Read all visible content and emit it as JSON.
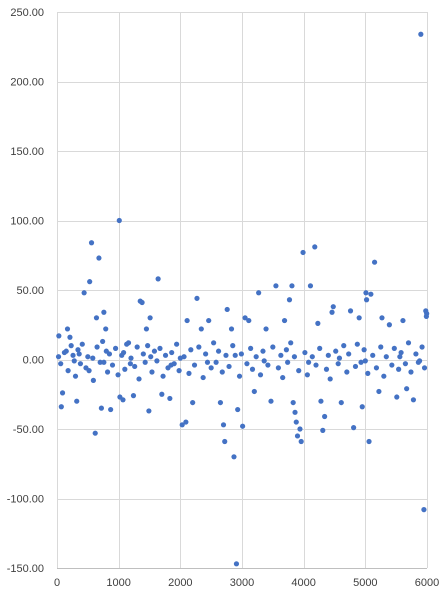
{
  "chart_data": {
    "type": "scatter",
    "title": "",
    "xlabel": "",
    "ylabel": "",
    "xlim": [
      0,
      6000
    ],
    "ylim": [
      -150,
      250
    ],
    "x_ticks": [
      0,
      1000,
      2000,
      3000,
      4000,
      5000,
      6000
    ],
    "x_tick_labels": [
      "0",
      "1000",
      "2000",
      "3000",
      "4000",
      "5000",
      "6000"
    ],
    "y_ticks": [
      250,
      200,
      150,
      100,
      50,
      0,
      -50,
      -100,
      -150
    ],
    "y_tick_labels": [
      "250.00",
      "200.00",
      "150.00",
      "100.00",
      "50.00",
      "0.00",
      "-50.00",
      "-100.00",
      "-150.00"
    ],
    "grid": "on",
    "legend": "none",
    "colors": {
      "marker": "#4472c4",
      "positive_label": "#404040",
      "negative_label": "#c00000",
      "grid": "#d9d9d9"
    },
    "series": [
      {
        "points": [
          [
            30,
            17
          ],
          [
            70,
            -34
          ],
          [
            90,
            -24
          ],
          [
            170,
            22
          ],
          [
            210,
            16
          ],
          [
            230,
            10
          ],
          [
            320,
            -30
          ],
          [
            440,
            48
          ],
          [
            530,
            56
          ],
          [
            560,
            84
          ],
          [
            620,
            -53
          ],
          [
            640,
            30
          ],
          [
            680,
            73
          ],
          [
            720,
            -35
          ],
          [
            760,
            34
          ],
          [
            790,
            22
          ],
          [
            870,
            -36
          ],
          [
            1010,
            100
          ],
          [
            1020,
            -27
          ],
          [
            1070,
            -29
          ],
          [
            1130,
            11
          ],
          [
            1240,
            -26
          ],
          [
            1350,
            42
          ],
          [
            1380,
            41
          ],
          [
            1450,
            22
          ],
          [
            1490,
            -37
          ],
          [
            1510,
            30
          ],
          [
            1640,
            58
          ],
          [
            1700,
            -25
          ],
          [
            1830,
            -28
          ],
          [
            2030,
            -47
          ],
          [
            2090,
            -45
          ],
          [
            2110,
            28
          ],
          [
            2200,
            -31
          ],
          [
            2270,
            44
          ],
          [
            2340,
            22
          ],
          [
            2460,
            28
          ],
          [
            2650,
            -31
          ],
          [
            2700,
            -47
          ],
          [
            2720,
            -59
          ],
          [
            2760,
            36
          ],
          [
            2830,
            22
          ],
          [
            2870,
            -70
          ],
          [
            2910,
            -147
          ],
          [
            2930,
            -36
          ],
          [
            3010,
            -48
          ],
          [
            3050,
            30
          ],
          [
            3110,
            28
          ],
          [
            3200,
            -23
          ],
          [
            3270,
            48
          ],
          [
            3390,
            22
          ],
          [
            3470,
            -30
          ],
          [
            3550,
            53
          ],
          [
            3690,
            28
          ],
          [
            3770,
            43
          ],
          [
            3810,
            53
          ],
          [
            3830,
            -31
          ],
          [
            3860,
            -38
          ],
          [
            3880,
            -45
          ],
          [
            3900,
            -55
          ],
          [
            3940,
            -50
          ],
          [
            3960,
            -59
          ],
          [
            3990,
            77
          ],
          [
            4110,
            53
          ],
          [
            4180,
            81
          ],
          [
            4230,
            26
          ],
          [
            4280,
            -30
          ],
          [
            4310,
            -51
          ],
          [
            4340,
            -41
          ],
          [
            4460,
            34
          ],
          [
            4480,
            38
          ],
          [
            4610,
            -31
          ],
          [
            4760,
            35
          ],
          [
            4810,
            -49
          ],
          [
            4900,
            30
          ],
          [
            4950,
            -34
          ],
          [
            5010,
            48
          ],
          [
            5020,
            43
          ],
          [
            5060,
            -59
          ],
          [
            5090,
            47
          ],
          [
            5150,
            70
          ],
          [
            5220,
            -23
          ],
          [
            5270,
            30
          ],
          [
            5390,
            25
          ],
          [
            5510,
            -27
          ],
          [
            5610,
            28
          ],
          [
            5670,
            -21
          ],
          [
            5780,
            -29
          ],
          [
            5900,
            234
          ],
          [
            5950,
            -108
          ],
          [
            5980,
            35
          ],
          [
            5990,
            31
          ],
          [
            5995,
            33
          ],
          [
            120,
            5
          ],
          [
            180,
            -8
          ],
          [
            260,
            3
          ],
          [
            300,
            -12
          ],
          [
            340,
            7
          ],
          [
            380,
            -3
          ],
          [
            410,
            11
          ],
          [
            470,
            -6
          ],
          [
            500,
            2
          ],
          [
            590,
            -15
          ],
          [
            650,
            9
          ],
          [
            700,
            -2
          ],
          [
            740,
            13
          ],
          [
            820,
            -9
          ],
          [
            850,
            4
          ],
          [
            900,
            -4
          ],
          [
            950,
            8
          ],
          [
            990,
            -11
          ],
          [
            1050,
            3
          ],
          [
            1100,
            -7
          ],
          [
            1160,
            12
          ],
          [
            1200,
            1
          ],
          [
            1260,
            -5
          ],
          [
            1300,
            9
          ],
          [
            1330,
            -14
          ],
          [
            1400,
            4
          ],
          [
            1430,
            -2
          ],
          [
            1470,
            10
          ],
          [
            1540,
            -9
          ],
          [
            1580,
            6
          ],
          [
            1620,
            -1
          ],
          [
            1670,
            8
          ],
          [
            1720,
            -12
          ],
          [
            1760,
            3
          ],
          [
            1800,
            -6
          ],
          [
            1860,
            5
          ],
          [
            1900,
            -3
          ],
          [
            1940,
            11
          ],
          [
            1980,
            -8
          ],
          [
            2060,
            2
          ],
          [
            2140,
            -10
          ],
          [
            2170,
            7
          ],
          [
            2230,
            -4
          ],
          [
            2300,
            9
          ],
          [
            2370,
            -13
          ],
          [
            2410,
            4
          ],
          [
            2500,
            -6
          ],
          [
            2540,
            12
          ],
          [
            2580,
            -2
          ],
          [
            2620,
            6
          ],
          [
            2680,
            -9
          ],
          [
            2740,
            3
          ],
          [
            2790,
            -5
          ],
          [
            2850,
            10
          ],
          [
            2960,
            -12
          ],
          [
            2990,
            4
          ],
          [
            3080,
            -3
          ],
          [
            3140,
            8
          ],
          [
            3170,
            -7
          ],
          [
            3230,
            2
          ],
          [
            3300,
            -11
          ],
          [
            3340,
            6
          ],
          [
            3420,
            -4
          ],
          [
            3500,
            9
          ],
          [
            3590,
            -6
          ],
          [
            3630,
            3
          ],
          [
            3660,
            -13
          ],
          [
            3720,
            7
          ],
          [
            3740,
            -2
          ],
          [
            3790,
            12
          ],
          [
            3920,
            -8
          ],
          [
            4020,
            5
          ],
          [
            4060,
            -11
          ],
          [
            4140,
            2
          ],
          [
            4200,
            -4
          ],
          [
            4260,
            8
          ],
          [
            4370,
            -7
          ],
          [
            4400,
            3
          ],
          [
            4430,
            -14
          ],
          [
            4520,
            6
          ],
          [
            4560,
            -3
          ],
          [
            4650,
            10
          ],
          [
            4700,
            -9
          ],
          [
            4730,
            4
          ],
          [
            4840,
            -5
          ],
          [
            4870,
            11
          ],
          [
            4930,
            -2
          ],
          [
            4980,
            7
          ],
          [
            5040,
            -10
          ],
          [
            5120,
            3
          ],
          [
            5180,
            -6
          ],
          [
            5250,
            9
          ],
          [
            5300,
            -12
          ],
          [
            5340,
            2
          ],
          [
            5430,
            -4
          ],
          [
            5470,
            8
          ],
          [
            5540,
            -7
          ],
          [
            5580,
            5
          ],
          [
            5650,
            -3
          ],
          [
            5700,
            12
          ],
          [
            5740,
            -9
          ],
          [
            5820,
            4
          ],
          [
            5860,
            -2
          ],
          [
            5920,
            9
          ],
          [
            5960,
            -6
          ],
          [
            25,
            2
          ],
          [
            60,
            -3
          ],
          [
            150,
            6
          ],
          [
            280,
            -1
          ],
          [
            360,
            4
          ],
          [
            520,
            -8
          ],
          [
            580,
            1
          ],
          [
            760,
            -2
          ],
          [
            800,
            6
          ],
          [
            1080,
            5
          ],
          [
            1190,
            -3
          ],
          [
            1520,
            2
          ],
          [
            1850,
            -4
          ],
          [
            2000,
            1
          ],
          [
            2440,
            -2
          ],
          [
            2890,
            3
          ],
          [
            3360,
            -1
          ],
          [
            3850,
            2
          ],
          [
            4080,
            -2
          ],
          [
            4580,
            1
          ],
          [
            5000,
            -1
          ],
          [
            5560,
            2
          ],
          [
            5880,
            -1
          ]
        ]
      }
    ]
  }
}
